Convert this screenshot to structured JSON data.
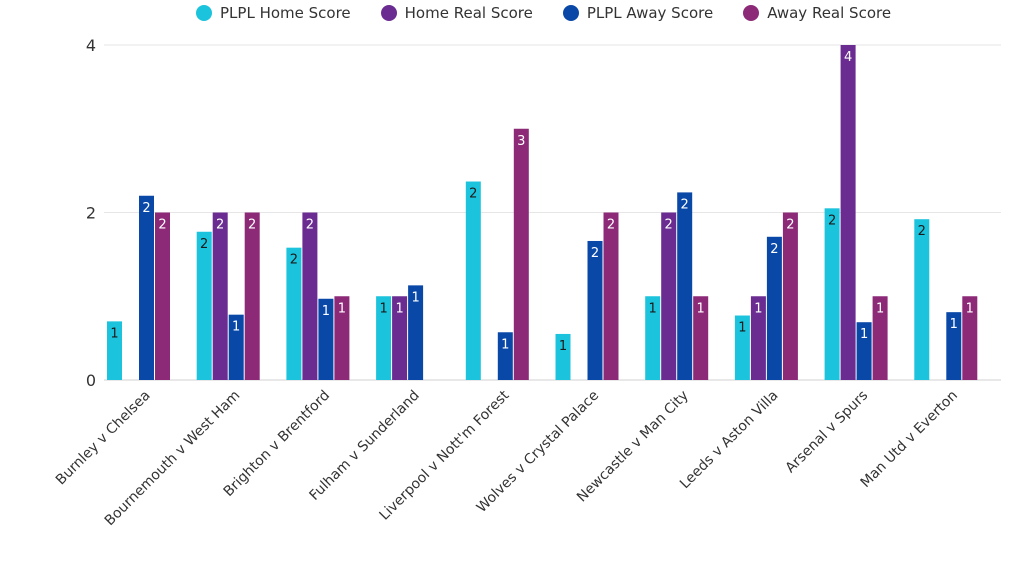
{
  "chart_data": {
    "type": "bar",
    "title": "",
    "xlabel": "",
    "ylabel": "",
    "ylim": [
      0,
      4
    ],
    "yticks": [
      0,
      2,
      4
    ],
    "grid": true,
    "legend_position": "top",
    "categories": [
      "Burnley v Chelsea",
      "Bournemouth v West Ham",
      "Brighton v Brentford",
      "Fulham v Sunderland",
      "Liverpool v Nott'm Forest",
      "Wolves v Crystal Palace",
      "Newcastle v Man City",
      "Leeds v Aston Villa",
      "Arsenal v Spurs",
      "Man Utd v Everton"
    ],
    "series": [
      {
        "name": "PLPL Home Score",
        "color": "#1cc3dc",
        "values": [
          0.7,
          1.77,
          1.58,
          1.0,
          2.37,
          0.55,
          1.0,
          0.77,
          2.05,
          1.92
        ],
        "labels": [
          "1",
          "2",
          "2",
          "1",
          "2",
          "1",
          "1",
          "1",
          "2",
          "2"
        ]
      },
      {
        "name": "Home Real Score",
        "color": "#6a2c91",
        "values": [
          null,
          2,
          2,
          1,
          null,
          null,
          2,
          1,
          4,
          null
        ],
        "labels": [
          null,
          "2",
          "2",
          "1",
          null,
          null,
          "2",
          "1",
          "4",
          null
        ]
      },
      {
        "name": "PLPL Away Score",
        "color": "#0a48a8",
        "values": [
          2.2,
          0.78,
          0.97,
          1.13,
          0.57,
          1.66,
          2.24,
          1.71,
          0.69,
          0.81
        ],
        "labels": [
          "2",
          "1",
          "1",
          "1",
          "1",
          "2",
          "2",
          "2",
          "1",
          "1"
        ]
      },
      {
        "name": "Away Real Score",
        "color": "#8c2a78",
        "values": [
          2,
          2,
          1,
          null,
          3,
          2,
          1,
          2,
          1,
          1
        ],
        "labels": [
          "2",
          "2",
          "1",
          null,
          "3",
          "2",
          "1",
          "2",
          "1",
          "1"
        ]
      }
    ]
  }
}
